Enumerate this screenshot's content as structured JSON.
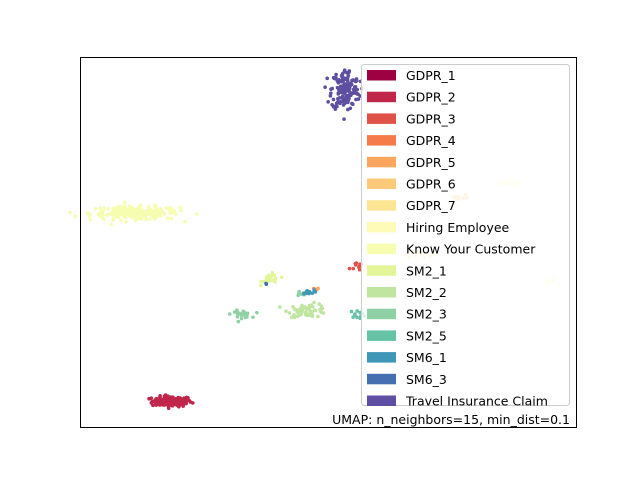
{
  "chart_data": {
    "type": "scatter",
    "title": "",
    "xlabel": "",
    "ylabel": "",
    "axes_ticks": false,
    "grid": false,
    "legend_placement": "upper-right",
    "xlim": [
      0,
      100
    ],
    "ylim": [
      0,
      100
    ],
    "annotation": "UMAP: n_neighbors=15, min_dist=0.1",
    "series": [
      {
        "name": "GDPR_1",
        "color": "#9e0142",
        "clusters": []
      },
      {
        "name": "GDPR_2",
        "color": "#c0264a",
        "clusters": [
          {
            "cx": 18.5,
            "cy": 6.9,
            "sx": 2.0,
            "sy": 0.7,
            "n": 150
          }
        ]
      },
      {
        "name": "GDPR_3",
        "color": "#e05248",
        "clusters": [
          {
            "cx": 56.5,
            "cy": 43.5,
            "sx": 1.0,
            "sy": 0.8,
            "n": 10
          }
        ]
      },
      {
        "name": "GDPR_4",
        "color": "#f67b4a",
        "clusters": [
          {
            "cx": 47.5,
            "cy": 37.3,
            "sx": 0.2,
            "sy": 0.2,
            "n": 2
          }
        ]
      },
      {
        "name": "GDPR_5",
        "color": "#fca65e",
        "clusters": [
          {
            "cx": 48.0,
            "cy": 37.5,
            "sx": 0.2,
            "sy": 0.2,
            "n": 2
          }
        ]
      },
      {
        "name": "GDPR_6",
        "color": "#fdca79",
        "clusters": [
          {
            "cx": 76.0,
            "cy": 62.0,
            "sx": 1.2,
            "sy": 0.5,
            "n": 10
          }
        ]
      },
      {
        "name": "GDPR_7",
        "color": "#fee593",
        "clusters": [
          {
            "cx": 68.0,
            "cy": 47.0,
            "sx": 1.5,
            "sy": 0.6,
            "n": 15
          }
        ]
      },
      {
        "name": "Hiring Employee",
        "color": "#fefbb9",
        "clusters": [
          {
            "cx": 95.0,
            "cy": 39.5,
            "sx": 0.6,
            "sy": 0.4,
            "n": 10
          },
          {
            "cx": 86.5,
            "cy": 66.0,
            "sx": 1.2,
            "sy": 0.5,
            "n": 14
          }
        ]
      },
      {
        "name": "Know Your Customer",
        "color": "#f6fcb0",
        "clusters": [
          {
            "cx": 11.0,
            "cy": 57.8,
            "sx": 4.5,
            "sy": 0.9,
            "n": 220
          }
        ]
      },
      {
        "name": "SM2_1",
        "color": "#e2f598",
        "clusters": [
          {
            "cx": 38.5,
            "cy": 40.0,
            "sx": 0.9,
            "sy": 0.7,
            "n": 25
          }
        ]
      },
      {
        "name": "SM2_2",
        "color": "#bfe5a0",
        "clusters": [
          {
            "cx": 46.0,
            "cy": 31.5,
            "sx": 2.0,
            "sy": 0.9,
            "n": 60
          }
        ]
      },
      {
        "name": "SM2_3",
        "color": "#8fd1a4",
        "clusters": [
          {
            "cx": 32.5,
            "cy": 30.5,
            "sx": 1.0,
            "sy": 0.5,
            "n": 25
          },
          {
            "cx": 44.5,
            "cy": 36.0,
            "sx": 0.6,
            "sy": 0.4,
            "n": 8
          }
        ]
      },
      {
        "name": "SM2_5",
        "color": "#66c2a5",
        "clusters": [
          {
            "cx": 56.0,
            "cy": 30.5,
            "sx": 0.8,
            "sy": 0.5,
            "n": 12
          }
        ]
      },
      {
        "name": "SM6_1",
        "color": "#3f96b7",
        "clusters": [
          {
            "cx": 45.8,
            "cy": 36.4,
            "sx": 0.7,
            "sy": 0.3,
            "n": 14
          }
        ]
      },
      {
        "name": "SM6_3",
        "color": "#4470b1",
        "clusters": [
          {
            "cx": 37.6,
            "cy": 38.7,
            "sx": 0.1,
            "sy": 0.1,
            "n": 2
          }
        ]
      },
      {
        "name": "Travel Insurance Claim",
        "color": "#5e4fa2",
        "clusters": [
          {
            "cx": 53.5,
            "cy": 91.2,
            "sx": 1.4,
            "sy": 2.8,
            "n": 160
          }
        ]
      }
    ]
  }
}
